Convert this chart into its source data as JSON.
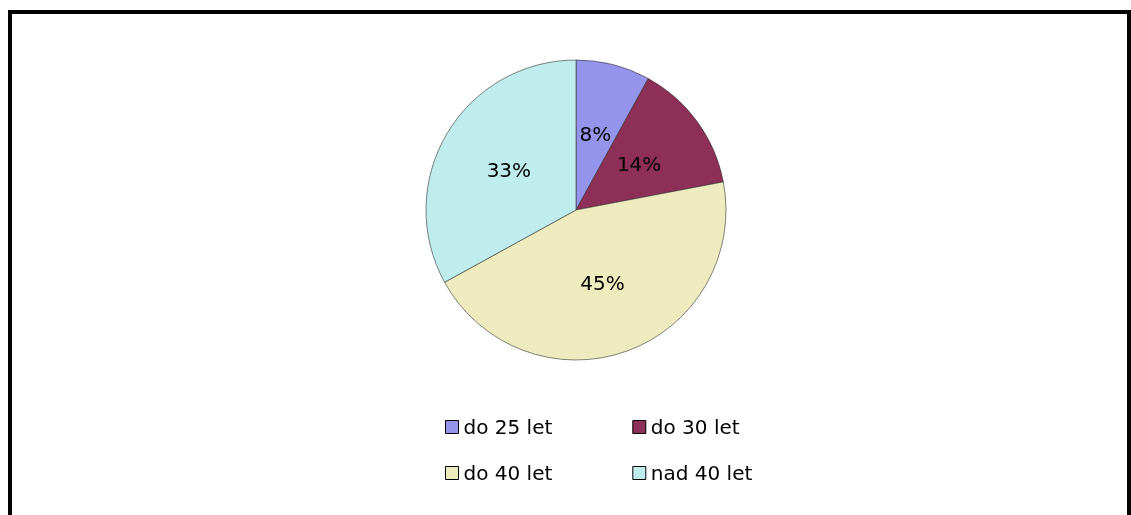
{
  "chart_data": {
    "type": "pie",
    "categories": [
      "do 25 let",
      "do 30 let",
      "do 40 let",
      "nad 40 let"
    ],
    "values": [
      8,
      14,
      45,
      33
    ],
    "colors": [
      "#9494ec",
      "#8e2f57",
      "#eeecbe",
      "#bfeced"
    ],
    "value_labels": [
      "8%",
      "14%",
      "45%",
      "33%"
    ],
    "legend": "bottom"
  }
}
